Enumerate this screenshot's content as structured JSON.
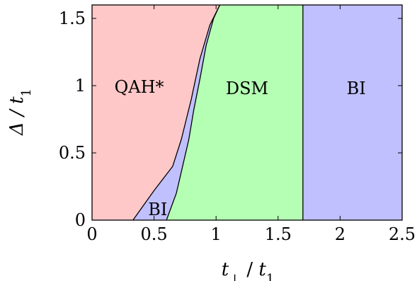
{
  "chart_data": {
    "type": "area",
    "title": "",
    "xlabel_main": "t",
    "xlabel_sub": "⊥",
    "xlabel_sep": " / ",
    "xlabel_den": "t",
    "xlabel_den_sub": "1",
    "ylabel_main": "Δ / t",
    "ylabel_sub": "1",
    "xlim": [
      0,
      2.5
    ],
    "ylim": [
      0,
      1.6
    ],
    "xticks": [
      0,
      0.5,
      1,
      1.5,
      2,
      2.5
    ],
    "xtick_labels": [
      "0",
      "0.5",
      "1",
      "1.5",
      "2",
      "2.5"
    ],
    "yticks": [
      0,
      0.5,
      1,
      1.5
    ],
    "ytick_labels": [
      "0",
      "0.5",
      "1",
      "1.5"
    ],
    "grid": false,
    "colors": {
      "qah": "#ffc8c8",
      "bi": "#c0c0ff",
      "dsm": "#b4ffb4"
    },
    "boundaries": {
      "qah_bi": [
        [
          0.33,
          0.0
        ],
        [
          0.5,
          0.22
        ],
        [
          0.65,
          0.4
        ],
        [
          0.72,
          0.6
        ],
        [
          0.8,
          0.9
        ],
        [
          0.87,
          1.2
        ],
        [
          0.95,
          1.45
        ],
        [
          1.03,
          1.6
        ]
      ],
      "bi_dsm": [
        [
          0.6,
          0.0
        ],
        [
          0.68,
          0.2
        ],
        [
          0.73,
          0.4
        ],
        [
          0.78,
          0.6
        ],
        [
          0.82,
          0.82
        ],
        [
          0.87,
          1.05
        ],
        [
          0.92,
          1.3
        ],
        [
          0.98,
          1.5
        ],
        [
          1.03,
          1.6
        ]
      ],
      "dsm_bi": 1.7
    },
    "regions": [
      {
        "id": "qah",
        "label": "QAH*",
        "x": 0.38,
        "y": 0.99
      },
      {
        "id": "bi-small",
        "label": "BI",
        "x": 0.53,
        "y": 0.08
      },
      {
        "id": "dsm",
        "label": "DSM",
        "x": 1.25,
        "y": 0.98
      },
      {
        "id": "bi-large",
        "label": "BI",
        "x": 2.13,
        "y": 0.98
      }
    ]
  }
}
